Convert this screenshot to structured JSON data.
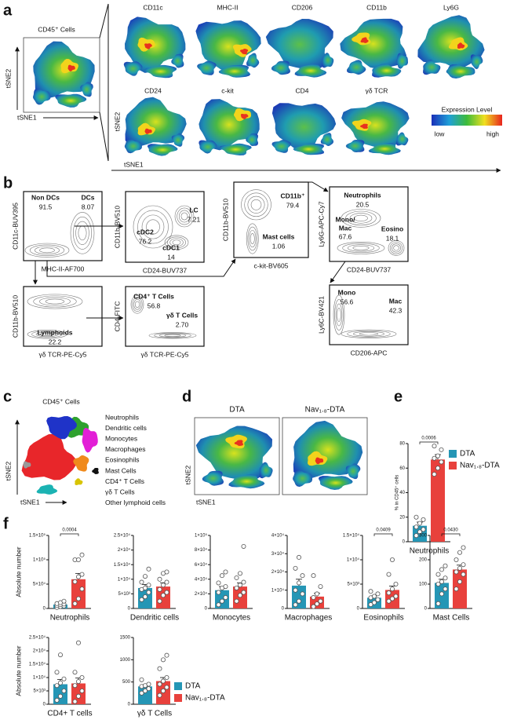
{
  "panel_labels": [
    "a",
    "b",
    "c",
    "d",
    "e",
    "f"
  ],
  "a": {
    "title": "CD45⁺ Cells",
    "y_axis": "tSNE2",
    "x_axis": "tSNE1",
    "markers": [
      "CD11c",
      "MHC-II",
      "CD206",
      "CD11b",
      "Ly6G",
      "CD24",
      "c-kit",
      "CD4",
      "γδ TCR"
    ],
    "grid_y_axis": "tSNE2",
    "grid_x_axis": "tSNE1",
    "colorbar": {
      "title": "Expression Level",
      "low": "low",
      "high": "high"
    }
  },
  "b": {
    "plots": [
      {
        "y_label": "CD11c-BUV395",
        "x_label": "MHC-II-AF700",
        "gates": [
          {
            "name": "Non DCs",
            "value": "91.5"
          },
          {
            "name": "DCs",
            "value": "8.07"
          }
        ]
      },
      {
        "y_label": "CD11b-BV510",
        "x_label": "CD24-BUV737",
        "gates": [
          {
            "name": "LC",
            "value": "7.21"
          },
          {
            "name": "cDC2",
            "value": "76.2"
          },
          {
            "name": "cDC1",
            "value": "14"
          }
        ]
      },
      {
        "y_label": "CD11b-BV510",
        "x_label": "c-kit-BV605",
        "gates": [
          {
            "name": "CD11b⁺",
            "value": "79.4"
          },
          {
            "name": "Mast cells",
            "value": "1.06"
          }
        ]
      },
      {
        "y_label": "Ly6G-APC-Cy7",
        "x_label": "CD24-BUV737",
        "gates": [
          {
            "name": "Neutrophils",
            "value": "20.5"
          },
          {
            "name": [
              "Mono/",
              "Mac"
            ],
            "value": "67.6"
          },
          {
            "name": "Eosino",
            "value": "18.1"
          }
        ]
      },
      {
        "y_label": "CD11b-BV510",
        "x_label": "γδ TCR-PE-Cy5",
        "gates": [
          {
            "name": "Lymphoids",
            "value": "22.2"
          }
        ]
      },
      {
        "y_label": "CD4-FITC",
        "x_label": "γδ TCR-PE-Cy5",
        "gates": [
          {
            "name": "CD4⁺ T Cells",
            "value": "56.8"
          },
          {
            "name": "γδ T Cells",
            "value": "2.70"
          }
        ]
      },
      {
        "y_label": "Ly6C-BV421",
        "x_label": "CD206-APC",
        "gates": [
          {
            "name": "Mono",
            "value": "56.6"
          },
          {
            "name": "Mac",
            "value": "42.3"
          }
        ]
      }
    ]
  },
  "c": {
    "title": "CD45⁺ Cells",
    "y_axis": "tSNE2",
    "x_axis": "tSNE1",
    "populations": [
      {
        "name": "Neutrophils",
        "color": "#e8262a"
      },
      {
        "name": "Dendritic cells",
        "color": "#2ea12e"
      },
      {
        "name": "Monocytes",
        "color": "#e21fd6"
      },
      {
        "name": "Macrophages",
        "color": "#1f33c8"
      },
      {
        "name": "Eosinophils",
        "color": "#f08a1c"
      },
      {
        "name": "Mast Cells",
        "color": "#111111"
      },
      {
        "name": "CD4⁺ T Cells",
        "color": "#1bb3b3"
      },
      {
        "name": "γδ T Cells",
        "color": "#d8c400"
      },
      {
        "name": "Other lymphoid cells",
        "color": "#999999"
      }
    ]
  },
  "d": {
    "maps": [
      "DTA",
      "Nav₁.₈-DTA"
    ],
    "y_axis": "tSNE2",
    "x_axis": "tSNE1"
  },
  "chart_data": [
    {
      "type": "bar",
      "ylabel": "% in CD45⁺ cells",
      "categories": [
        "Neutrophils"
      ],
      "ylim": [
        0,
        80
      ],
      "yticks": [
        0,
        20,
        40,
        60,
        80
      ],
      "pvalue": "0.0006",
      "series": [
        {
          "name": "DTA",
          "color": "#2596b5",
          "values": [
            13
          ],
          "errors": [
            3
          ],
          "points": [
            5,
            8,
            10,
            12,
            15,
            18,
            20
          ]
        },
        {
          "name": "Nav₁.₈-DTA",
          "color": "#e8413c",
          "values": [
            67
          ],
          "errors": [
            4
          ],
          "points": [
            55,
            60,
            65,
            68,
            70,
            75,
            78
          ]
        }
      ]
    },
    {
      "type": "bar",
      "ylabel": "Absolute number",
      "categories": [
        "Neutrophils"
      ],
      "ylim": [
        0,
        150000
      ],
      "yticks": [
        0,
        {
          "value": 50000,
          "label": "5×10⁴"
        },
        {
          "value": 100000,
          "label": "1×10⁵"
        },
        {
          "value": 150000,
          "label": "1.5×10⁵"
        }
      ],
      "pvalue": "0.0004",
      "series": [
        {
          "color": "#2596b5",
          "values": [
            8000
          ],
          "errors": [
            2000
          ],
          "points": [
            2000,
            4000,
            5000,
            6000,
            8000,
            9000,
            10000,
            12000,
            15000
          ]
        },
        {
          "color": "#e8413c",
          "values": [
            60000
          ],
          "errors": [
            12000
          ],
          "points": [
            10000,
            20000,
            40000,
            55000,
            65000,
            70000,
            100000,
            100000,
            110000
          ]
        }
      ]
    },
    {
      "type": "bar",
      "categories": [
        "Dendritic cells"
      ],
      "ylim": [
        0,
        25000
      ],
      "yticks": [
        0,
        {
          "value": 5000,
          "label": "5×10³"
        },
        {
          "value": 10000,
          "label": "1×10⁴"
        },
        {
          "value": 15000,
          "label": "1.5×10⁴"
        },
        {
          "value": 20000,
          "label": "2×10⁴"
        },
        {
          "value": 25000,
          "label": "2.5×10⁴"
        }
      ],
      "series": [
        {
          "color": "#2596b5",
          "values": [
            7000
          ],
          "errors": [
            1200
          ],
          "points": [
            3000,
            4000,
            5500,
            6500,
            7000,
            8000,
            9000,
            11000,
            13500
          ]
        },
        {
          "color": "#e8413c",
          "values": [
            7500
          ],
          "errors": [
            1300
          ],
          "points": [
            2500,
            4500,
            5500,
            6500,
            8000,
            9000,
            10000,
            12000,
            12500
          ]
        }
      ]
    },
    {
      "type": "bar",
      "categories": [
        "Monocytes"
      ],
      "ylim": [
        0,
        100000
      ],
      "yticks": [
        0,
        {
          "value": 20000,
          "label": "2×10⁴"
        },
        {
          "value": 40000,
          "label": "4×10⁴"
        },
        {
          "value": 60000,
          "label": "6×10⁴"
        },
        {
          "value": 80000,
          "label": "8×10⁴"
        },
        {
          "value": 100000,
          "label": "1×10⁵"
        }
      ],
      "series": [
        {
          "color": "#2596b5",
          "values": [
            25000
          ],
          "errors": [
            5000
          ],
          "points": [
            5000,
            10000,
            15000,
            22000,
            28000,
            30000,
            35000,
            45000,
            50000
          ]
        },
        {
          "color": "#e8413c",
          "values": [
            30000
          ],
          "errors": [
            5000
          ],
          "points": [
            10000,
            18000,
            22000,
            28000,
            32000,
            36000,
            42000,
            48000,
            85000
          ]
        }
      ]
    },
    {
      "type": "bar",
      "categories": [
        "Macrophages"
      ],
      "ylim": [
        0,
        40000
      ],
      "yticks": [
        0,
        {
          "value": 10000,
          "label": "1×10⁴"
        },
        {
          "value": 20000,
          "label": "2×10⁴"
        },
        {
          "value": 30000,
          "label": "3×10⁴"
        },
        {
          "value": 40000,
          "label": "4×10⁴"
        }
      ],
      "series": [
        {
          "color": "#2596b5",
          "values": [
            12500
          ],
          "errors": [
            3500
          ],
          "points": [
            2000,
            4000,
            8000,
            10000,
            14000,
            18000,
            22000,
            28000
          ]
        },
        {
          "color": "#e8413c",
          "values": [
            6500
          ],
          "errors": [
            1800
          ],
          "points": [
            1000,
            2500,
            4000,
            6000,
            8000,
            12000,
            18000
          ]
        }
      ]
    },
    {
      "type": "bar",
      "categories": [
        "Eosinophils"
      ],
      "ylim": [
        0,
        15000
      ],
      "yticks": [
        0,
        {
          "value": 5000,
          "label": "5×10³"
        },
        {
          "value": 10000,
          "label": "1×10⁴"
        },
        {
          "value": 15000,
          "label": "1.5×10⁴"
        }
      ],
      "pvalue": "0.0409",
      "series": [
        {
          "color": "#2596b5",
          "values": [
            2200
          ],
          "errors": [
            400
          ],
          "points": [
            800,
            1200,
            1800,
            2200,
            2500,
            3000,
            3500
          ]
        },
        {
          "color": "#e8413c",
          "values": [
            3800
          ],
          "errors": [
            800
          ],
          "points": [
            1500,
            2000,
            2500,
            3200,
            4000,
            5000,
            7000,
            10000
          ]
        }
      ]
    },
    {
      "type": "bar",
      "categories": [
        "Mast Cells"
      ],
      "ylim": [
        0,
        300
      ],
      "yticks": [
        0,
        100,
        200,
        300
      ],
      "pvalue": "0.0430",
      "series": [
        {
          "color": "#2596b5",
          "values": [
            105
          ],
          "errors": [
            15
          ],
          "points": [
            20,
            60,
            80,
            100,
            110,
            125,
            140,
            160,
            175
          ]
        },
        {
          "color": "#e8413c",
          "values": [
            160
          ],
          "errors": [
            18
          ],
          "points": [
            80,
            110,
            140,
            150,
            165,
            180,
            200,
            230,
            250
          ]
        }
      ]
    },
    {
      "type": "bar",
      "ylabel": "Absolute number",
      "categories": [
        "CD4+ T cells"
      ],
      "ylim": [
        0,
        25000
      ],
      "yticks": [
        0,
        {
          "value": 5000,
          "label": "5×10³"
        },
        {
          "value": 10000,
          "label": "1×10⁴"
        },
        {
          "value": 15000,
          "label": "1.5×10⁴"
        },
        {
          "value": 20000,
          "label": "2×10⁴"
        },
        {
          "value": 25000,
          "label": "2.5×10⁴"
        }
      ],
      "series": [
        {
          "color": "#2596b5",
          "values": [
            7500
          ],
          "errors": [
            1800
          ],
          "points": [
            1500,
            3000,
            5000,
            7000,
            8000,
            9500,
            12000,
            18500
          ]
        },
        {
          "color": "#e8413c",
          "values": [
            7800
          ],
          "errors": [
            2000
          ],
          "points": [
            1000,
            3000,
            5000,
            7000,
            8500,
            10000,
            12000,
            23000
          ]
        }
      ]
    },
    {
      "type": "bar",
      "categories": [
        "γδ T Cells"
      ],
      "ylim": [
        0,
        1500
      ],
      "yticks": [
        0,
        500,
        1000,
        1500
      ],
      "series": [
        {
          "name": "DTA",
          "color": "#2596b5",
          "values": [
            400
          ],
          "errors": [
            40
          ],
          "points": [
            250,
            300,
            350,
            400,
            420,
            450,
            550
          ]
        },
        {
          "name": "Nav₁.₈-DTA",
          "color": "#e8413c",
          "values": [
            520
          ],
          "errors": [
            80
          ],
          "points": [
            200,
            300,
            380,
            450,
            520,
            600,
            800,
            1000,
            1100
          ]
        }
      ]
    }
  ]
}
